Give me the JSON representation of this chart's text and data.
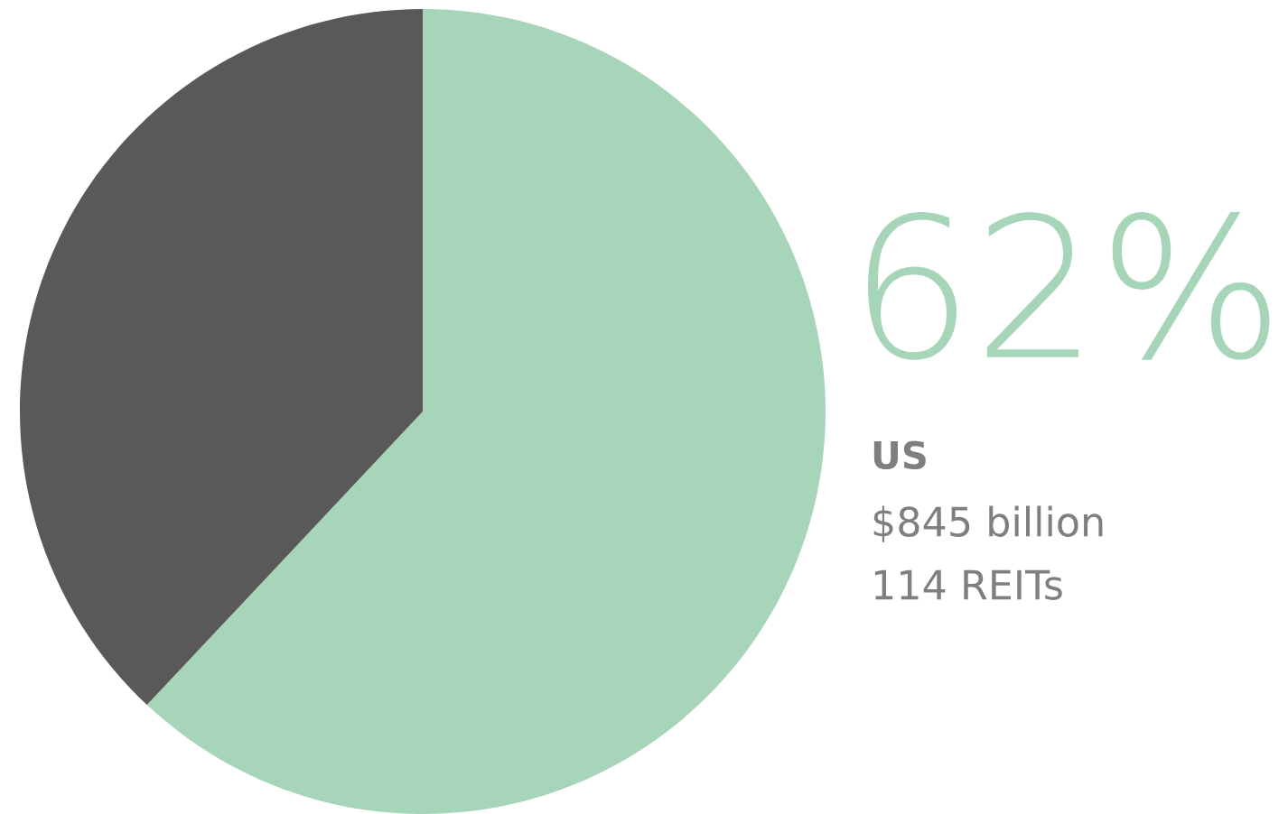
{
  "chart_data": {
    "type": "pie",
    "categories": [
      "US",
      null
    ],
    "values": [
      62,
      38
    ],
    "colors": [
      "#a7d5b9",
      "#595959"
    ],
    "value_labels": [
      "62%",
      null
    ],
    "annotations": [
      "$845 billion",
      "114 REITs"
    ],
    "legend": false
  }
}
